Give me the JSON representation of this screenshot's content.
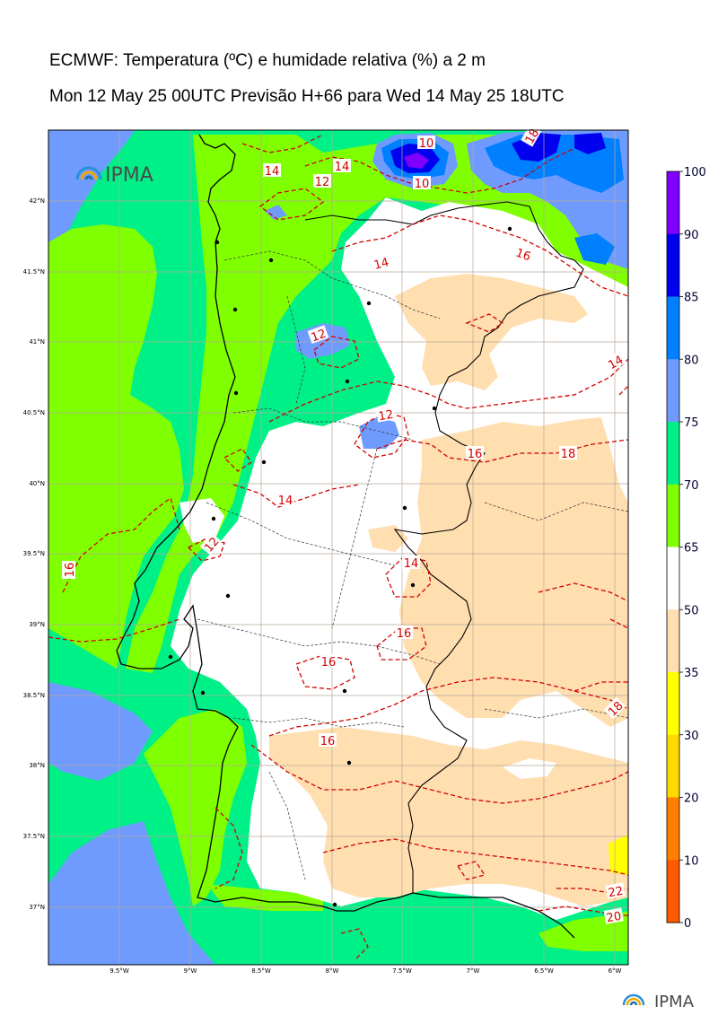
{
  "title": {
    "line1": "ECMWF: Temperatura (ºC) e humidade relativa (%) a 2 m",
    "line2": "Mon 12 May 25 00UTC Previsão H+66 para Wed 14 May 25 18UTC"
  },
  "map": {
    "lat_labels": [
      "42°N",
      "41.5°N",
      "41°N",
      "40.5°N",
      "40°N",
      "39.5°N",
      "39°N",
      "38.5°N",
      "38°N",
      "37.5°N",
      "37°N"
    ],
    "lon_labels": [
      "9.5°W",
      "9°W",
      "8.5°W",
      "8°W",
      "7.5°W",
      "7°W",
      "6.5°W",
      "6°W"
    ],
    "logo_text": "IPMA",
    "contour_labels": [
      "14",
      "12",
      "14",
      "12",
      "10",
      "10",
      "14",
      "16",
      "12",
      "14",
      "12",
      "16",
      "18",
      "14",
      "16",
      "14",
      "16",
      "16",
      "16",
      "18",
      "18",
      "22",
      "20"
    ],
    "contour_color": "#d40000"
  },
  "colorbar": {
    "ticks": [
      "100",
      "90",
      "85",
      "80",
      "75",
      "70",
      "65",
      "50",
      "35",
      "30",
      "20",
      "10",
      "0"
    ],
    "colors": [
      "#8000ff",
      "#0000ee",
      "#0080ff",
      "#6f9bff",
      "#00f088",
      "#80ff00",
      "#ffffff",
      "#ffdeb0",
      "#ffff00",
      "#ffd800",
      "#ff8000",
      "#ff5a00"
    ]
  },
  "footer": {
    "logo_text": "IPMA"
  }
}
